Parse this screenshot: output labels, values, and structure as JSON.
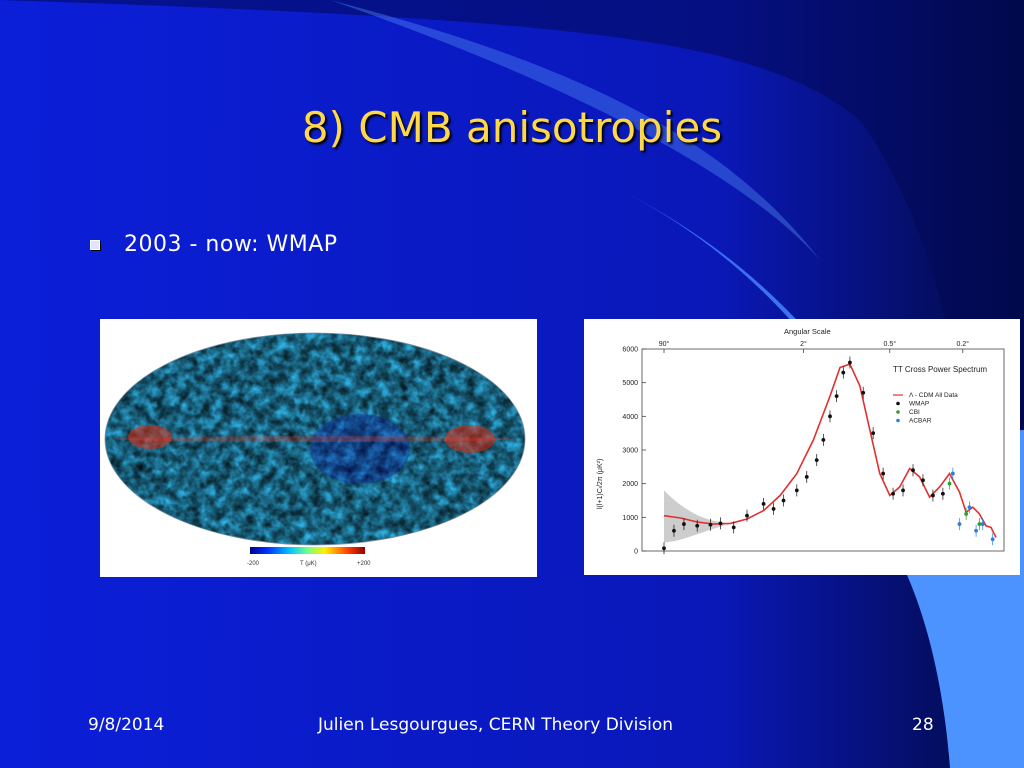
{
  "slide": {
    "title": "8) CMB anisotropies",
    "bullet": "2003 - now: WMAP",
    "footer": {
      "date": "9/8/2014",
      "author": "Julien Lesgourgues, CERN Theory Division",
      "page": "28"
    },
    "colors": {
      "background": "#0b1fd9",
      "title": "#ffd84a",
      "text": "#ffffff"
    }
  },
  "map": {
    "colorbar_min": "-200",
    "colorbar_max": "+200",
    "colorbar_label": "T (μK)"
  },
  "chart_data": {
    "type": "scatter",
    "title": "TT Cross Power Spectrum",
    "top_axis_label": "Angular Scale",
    "top_ticks": [
      "90°",
      "2°",
      "0.5°",
      "0.2°"
    ],
    "ylabel": "l(l+1)Cₗ/2π (μK²)",
    "ylim": [
      0,
      6000
    ],
    "yticks": [
      "0",
      "1000",
      "2000",
      "3000",
      "4000",
      "5000",
      "6000"
    ],
    "legend": [
      "Λ - CDM All Data",
      "WMAP",
      "CBI",
      "ACBAR"
    ],
    "series": [
      {
        "name": "Λ - CDM All Data",
        "type": "line",
        "color": "#e03030",
        "points": [
          [
            0.0,
            1050
          ],
          [
            0.05,
            980
          ],
          [
            0.1,
            860
          ],
          [
            0.15,
            800
          ],
          [
            0.2,
            820
          ],
          [
            0.25,
            950
          ],
          [
            0.3,
            1200
          ],
          [
            0.35,
            1650
          ],
          [
            0.4,
            2300
          ],
          [
            0.45,
            3300
          ],
          [
            0.5,
            4600
          ],
          [
            0.53,
            5450
          ],
          [
            0.56,
            5550
          ],
          [
            0.59,
            4900
          ],
          [
            0.62,
            3600
          ],
          [
            0.65,
            2300
          ],
          [
            0.68,
            1650
          ],
          [
            0.71,
            1900
          ],
          [
            0.74,
            2450
          ],
          [
            0.77,
            2200
          ],
          [
            0.8,
            1600
          ],
          [
            0.83,
            1900
          ],
          [
            0.86,
            2300
          ],
          [
            0.89,
            1750
          ],
          [
            0.91,
            1150
          ],
          [
            0.93,
            1300
          ],
          [
            0.95,
            1100
          ],
          [
            0.97,
            750
          ],
          [
            0.985,
            700
          ],
          [
            1.0,
            400
          ]
        ]
      },
      {
        "name": "WMAP",
        "type": "points",
        "color": "#111111",
        "points": [
          [
            0.0,
            80
          ],
          [
            0.03,
            600
          ],
          [
            0.06,
            800
          ],
          [
            0.1,
            750
          ],
          [
            0.14,
            780
          ],
          [
            0.17,
            820
          ],
          [
            0.21,
            700
          ],
          [
            0.25,
            1050
          ],
          [
            0.3,
            1400
          ],
          [
            0.33,
            1250
          ],
          [
            0.36,
            1500
          ],
          [
            0.4,
            1800
          ],
          [
            0.43,
            2200
          ],
          [
            0.46,
            2700
          ],
          [
            0.48,
            3300
          ],
          [
            0.5,
            4000
          ],
          [
            0.52,
            4600
          ],
          [
            0.54,
            5300
          ],
          [
            0.56,
            5600
          ],
          [
            0.6,
            4700
          ],
          [
            0.63,
            3500
          ],
          [
            0.66,
            2300
          ],
          [
            0.69,
            1700
          ],
          [
            0.72,
            1800
          ],
          [
            0.75,
            2400
          ],
          [
            0.78,
            2100
          ],
          [
            0.81,
            1650
          ],
          [
            0.84,
            1700
          ]
        ]
      },
      {
        "name": "CBI",
        "type": "points",
        "color": "#2aa02a",
        "points": [
          [
            0.86,
            2000
          ],
          [
            0.91,
            1100
          ],
          [
            0.95,
            800
          ]
        ]
      },
      {
        "name": "ACBAR",
        "type": "points",
        "color": "#2a7fe0",
        "points": [
          [
            0.87,
            2300
          ],
          [
            0.89,
            800
          ],
          [
            0.92,
            1300
          ],
          [
            0.94,
            600
          ],
          [
            0.96,
            800
          ],
          [
            0.99,
            350
          ]
        ]
      }
    ],
    "colorbar_cmap": "jet"
  }
}
